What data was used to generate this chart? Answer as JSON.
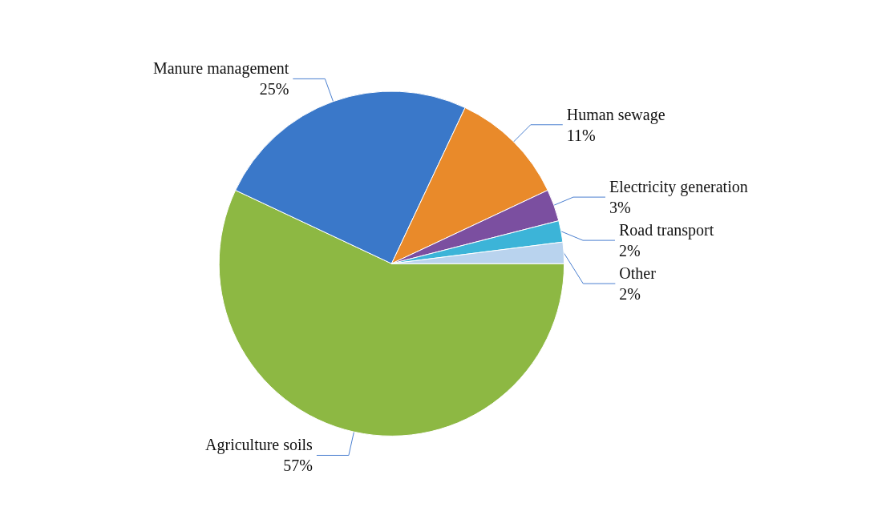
{
  "chart_data": {
    "type": "pie",
    "categories": [
      "Agriculture soils",
      "Manure management",
      "Human sewage",
      "Electricity generation",
      "Road transport",
      "Other"
    ],
    "values": [
      57,
      25,
      11,
      3,
      2,
      2
    ],
    "colors": [
      "#8db843",
      "#3a78c9",
      "#e98a2a",
      "#7b4fa0",
      "#3cb4d8",
      "#b9d3ee"
    ],
    "value_labels": [
      "57%",
      "25%",
      "11%",
      "3%",
      "2%",
      "2%"
    ],
    "legend": false
  }
}
